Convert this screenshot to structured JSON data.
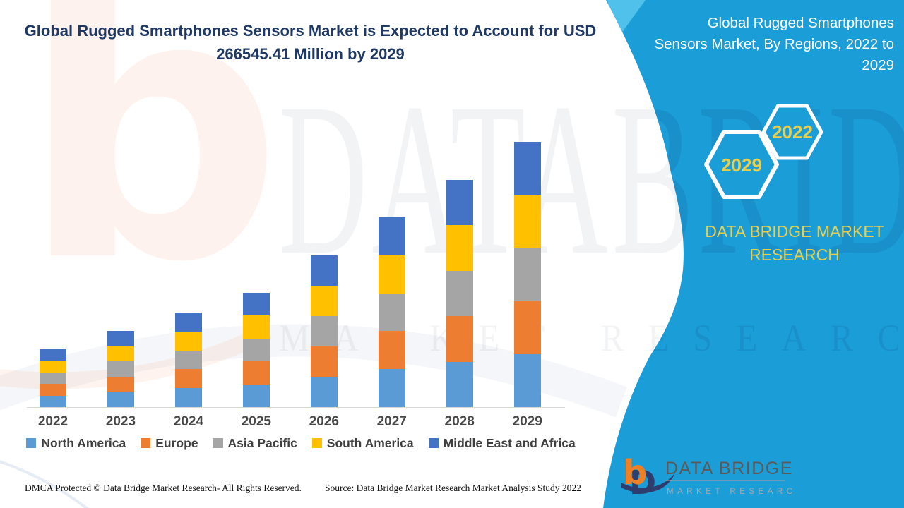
{
  "header": {
    "title_line1": "Global Rugged Smartphones Sensors Market is Expected to Account for USD",
    "title_line2": "266545.41 Million by 2029",
    "title_color": "#1F3864"
  },
  "chart_data": {
    "type": "bar",
    "stacked": true,
    "title": "Global Rugged Smartphones Sensors Market is Expected to Account for USD 266545.41 Million by 2029",
    "unit": "USD Million",
    "categories": [
      "2022",
      "2023",
      "2024",
      "2025",
      "2026",
      "2027",
      "2028",
      "2029"
    ],
    "series": [
      {
        "name": "North America",
        "color": "#5B9BD5",
        "values": [
          11620,
          15320,
          19000,
          22960,
          30580,
          38140,
          45660,
          53309.08
        ]
      },
      {
        "name": "Europe",
        "color": "#ED7D31",
        "values": [
          11620,
          15320,
          19000,
          22960,
          30580,
          38140,
          45660,
          53309.08
        ]
      },
      {
        "name": "Asia Pacific",
        "color": "#A5A5A5",
        "values": [
          11620,
          15320,
          19000,
          22960,
          30580,
          38140,
          45660,
          53309.08
        ]
      },
      {
        "name": "South America",
        "color": "#FFC000",
        "values": [
          11620,
          15320,
          19000,
          22960,
          30580,
          38140,
          45660,
          53309.08
        ]
      },
      {
        "name": "Middle East and Africa",
        "color": "#4472C4",
        "values": [
          11620,
          15320,
          19000,
          22960,
          30580,
          38140,
          45660,
          53309.08
        ]
      }
    ],
    "totals": [
      58100,
      76600,
      95000,
      114800,
      152900,
      190700,
      228300,
      266545.41
    ],
    "ylim": [
      0,
      280000
    ],
    "gridlines": false,
    "y_axis_visible": false,
    "legend_position": "bottom"
  },
  "footer": {
    "left": "DMCA Protected © Data Bridge Market Research- All Rights Reserved.",
    "right": "Source: Data Bridge Market Research Market Analysis Study 2022"
  },
  "panel": {
    "bg": "#1B9ED8",
    "accent": "#4FC1EB",
    "title_lines": [
      "Global Rugged Smartphones",
      "Sensors Market, By Regions, 2022 to",
      "2029"
    ],
    "title_color": "#FFFFFF",
    "hexagons": [
      {
        "label": "2022"
      },
      {
        "label": "2029"
      }
    ],
    "gold": "#E8CE4B",
    "brand_line1": "DATA BRIDGE MARKET",
    "brand_line2": "RESEARCH",
    "logo": {
      "text1": "DATA BRIDGE",
      "text2": "MARKET RESEARCH",
      "b_color": "#F08023",
      "swoosh_color": "#2E3D6E",
      "text1_color": "#595A5C",
      "text2_color": "#A6A8AB"
    }
  },
  "watermark": {
    "b_letter": "b",
    "line1": "DATABRIDGE",
    "line2": "MARKET RESEARCH"
  }
}
